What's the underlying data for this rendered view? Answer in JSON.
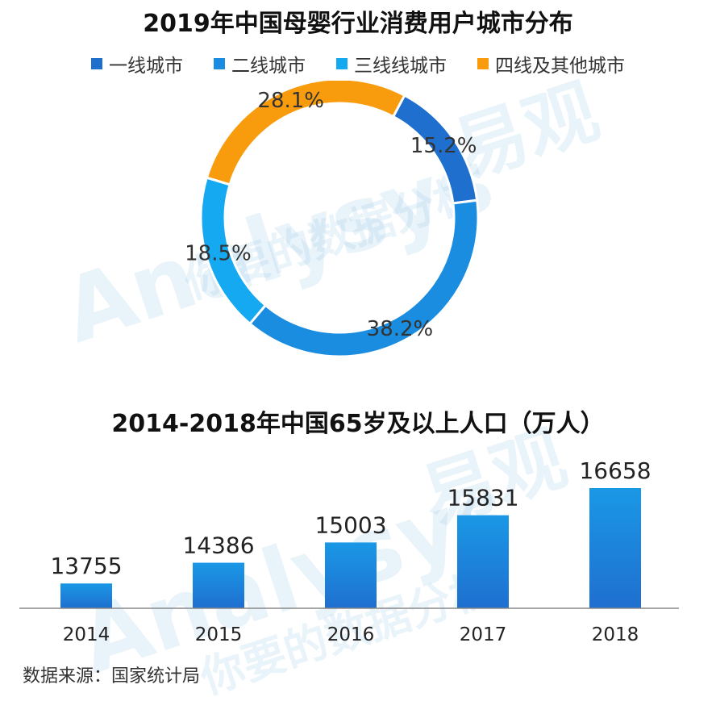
{
  "chart_data": [
    {
      "type": "pie",
      "variant": "donut",
      "title": "2019年中国母婴行业消费用户城市分布",
      "categories": [
        "一线城市",
        "二线城市",
        "三线线城市",
        "四线及其他城市"
      ],
      "values": [
        15.2,
        38.2,
        18.5,
        28.1
      ],
      "labels": [
        "15.2%",
        "38.2%",
        "18.5%",
        "28.1%"
      ],
      "colors": [
        "#1f6fcf",
        "#1a8de0",
        "#15a9f2",
        "#f89c0e"
      ],
      "legend_position": "top"
    },
    {
      "type": "bar",
      "title": "2014-2018年中国65岁及以上人口（万人）",
      "categories": [
        "2014",
        "2015",
        "2016",
        "2017",
        "2018"
      ],
      "values": [
        13755,
        14386,
        15003,
        15831,
        16658
      ],
      "color": "#1a8de0",
      "grid": false
    }
  ],
  "source": "数据来源：国家统计局",
  "watermark": {
    "brand": "Analysys",
    "cn_name": "易观",
    "slogan": "你要的数据分析"
  }
}
